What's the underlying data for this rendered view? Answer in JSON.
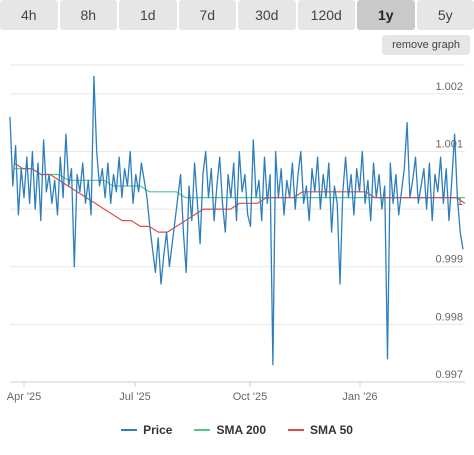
{
  "tabs": [
    {
      "label": "4h"
    },
    {
      "label": "8h"
    },
    {
      "label": "1d"
    },
    {
      "label": "7d"
    },
    {
      "label": "30d"
    },
    {
      "label": "120d"
    },
    {
      "label": "1y",
      "active": true
    },
    {
      "label": "5y"
    }
  ],
  "remove_graph_label": "remove graph",
  "chart_data": {
    "type": "line",
    "title": "",
    "xlabel": "",
    "ylabel": "",
    "ylim": [
      0.997,
      1.0025
    ],
    "y_ticks": [
      "1.002",
      "1.001",
      "1",
      "0.999",
      "0.998",
      "0.997"
    ],
    "x_ticks": [
      "Apr '25",
      "Jul '25",
      "Oct '25",
      "Jan '26"
    ],
    "grid": true,
    "legend_position": "bottom",
    "series": [
      {
        "name": "Price",
        "color": "#2f7ebc",
        "values": [
          1.0016,
          1.0004,
          1.0011,
          0.9999,
          1.0007,
          1.0002,
          1.0009,
          1.0001,
          1.001,
          1.0,
          1.0008,
          0.9998,
          1.0012,
          1.0003,
          1.0006,
          1.0001,
          1.0005,
          0.9999,
          1.0009,
          1.0002,
          1.0013,
          1.0004,
          1.0007,
          0.999,
          1.0006,
          1.0003,
          1.0008,
          1.0001,
          1.0005,
          0.9999,
          1.0023,
          1.001,
          1.0004,
          1.0007,
          1.0002,
          1.0008,
          1.0001,
          1.0006,
          1.0003,
          1.0009,
          1.0002,
          1.0007,
          1.0004,
          1.001,
          1.0001,
          1.0006,
          1.0003,
          1.0008,
          1.0005,
          1.0002,
          0.9997,
          0.9993,
          0.9989,
          0.9995,
          0.9987,
          0.9992,
          0.9996,
          0.999,
          0.9994,
          0.9998,
          1.0002,
          1.0006,
          0.9996,
          0.9989,
          1.0004,
          0.9998,
          1.0008,
          1.0001,
          0.9994,
          1.0006,
          1.001,
          1.0002,
          1.0007,
          0.9998,
          1.0004,
          1.0009,
          1.0001,
          0.9996,
          1.0006,
          1.0002,
          1.0008,
          0.9998,
          1.001,
          1.0003,
          1.0006,
          0.9999,
          0.9997,
          1.0012,
          1.0002,
          1.0005,
          0.9998,
          1.0009,
          1.0001,
          1.0006,
          0.9973,
          1.001,
          1.0002,
          1.0007,
          0.9999,
          1.0005,
          1.0002,
          1.0008,
          1.0,
          1.0006,
          1.001,
          1.0001,
          1.0004,
          0.9998,
          1.0007,
          1.0003,
          1.0009,
          1.0,
          1.0006,
          1.0002,
          1.0008,
          0.9996,
          1.0004,
          1.0001,
          0.9987,
          1.0003,
          1.0009,
          1.0002,
          1.0006,
          0.9999,
          1.0007,
          1.0003,
          1.001,
          1.0001,
          1.0005,
          0.9998,
          1.0008,
          1.0002,
          1.0006,
          1.0,
          1.0004,
          0.9974,
          1.0008,
          1.0001,
          1.0006,
          0.9999,
          1.0003,
          1.0007,
          1.0015,
          1.0002,
          1.0005,
          1.0009,
          1.0001,
          1.0004,
          1.0007,
          1.0,
          1.0008,
          0.9998,
          1.0006,
          1.0003,
          1.0009,
          1.0001,
          1.0007,
          0.9998,
          1.0005,
          1.0013,
          1.0002,
          0.9996,
          0.9993
        ]
      },
      {
        "name": "SMA 200",
        "color": "#52c58c",
        "values": [
          1.0007,
          1.0007,
          1.0007,
          1.0006,
          1.0006,
          1.0006,
          1.0005,
          1.0005,
          1.0005,
          1.0005,
          1.0005,
          1.0004,
          1.0004,
          1.0004,
          1.0004,
          1.0003,
          1.0003,
          1.0003,
          1.0003,
          1.0002,
          1.0002,
          1.0002,
          1.0002,
          1.0002,
          1.0002,
          1.0002,
          1.0002,
          1.0002,
          1.0002,
          1.0002,
          1.0002,
          1.0002,
          1.0002,
          1.0002,
          1.0002,
          1.0002,
          1.0002,
          1.0002,
          1.0002,
          1.0002,
          1.0002,
          1.0002,
          1.0002,
          1.0002,
          1.0002,
          1.0002,
          1.0002,
          1.0002,
          1.0002,
          1.0002,
          1.0002
        ]
      },
      {
        "name": "SMA 50",
        "color": "#e24a4a",
        "values": [
          1.0008,
          1.0007,
          1.0007,
          1.0006,
          1.0006,
          1.0005,
          1.0004,
          1.0003,
          1.0002,
          1.0001,
          1.0,
          0.9999,
          0.9998,
          0.9998,
          0.9997,
          0.9997,
          0.9996,
          0.9996,
          0.9997,
          0.9998,
          0.9999,
          1.0,
          1.0,
          1.0,
          1.0,
          1.0001,
          1.0001,
          1.0001,
          1.0002,
          1.0002,
          1.0002,
          1.0002,
          1.0003,
          1.0003,
          1.0003,
          1.0003,
          1.0003,
          1.0003,
          1.0003,
          1.0003,
          1.0002,
          1.0002,
          1.0002,
          1.0002,
          1.0002,
          1.0002,
          1.0002,
          1.0002,
          1.0002,
          1.0002,
          1.0001
        ]
      }
    ]
  }
}
